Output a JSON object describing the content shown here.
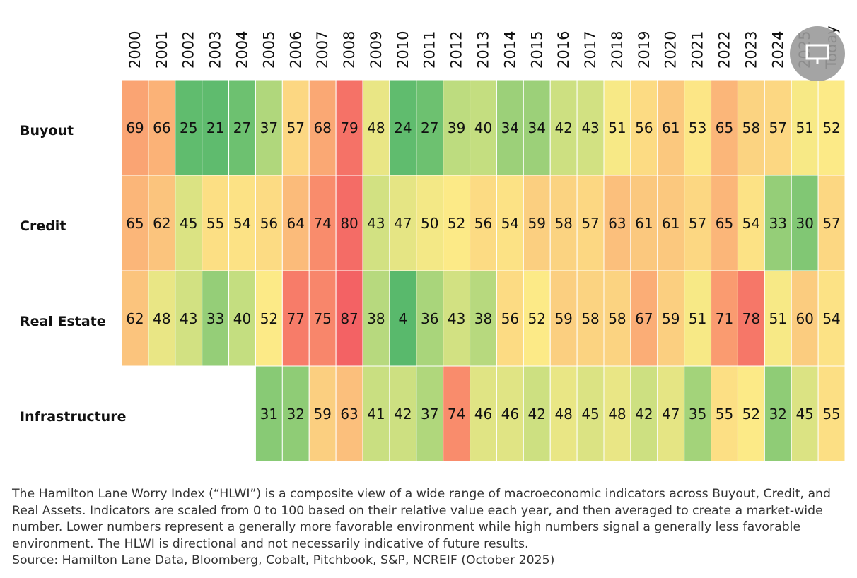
{
  "chart_data": {
    "type": "heatmap",
    "categories": [
      "2000",
      "2001",
      "2002",
      "2003",
      "2004",
      "2005",
      "2006",
      "2007",
      "2008",
      "2009",
      "2010",
      "2011",
      "2012",
      "2013",
      "2014",
      "2015",
      "2016",
      "2017",
      "2018",
      "2019",
      "2020",
      "2021",
      "2022",
      "2023",
      "2024",
      "2025",
      "Today"
    ],
    "series": [
      {
        "name": "Buyout",
        "values": [
          69,
          66,
          25,
          21,
          27,
          37,
          57,
          68,
          79,
          48,
          24,
          27,
          39,
          40,
          34,
          34,
          42,
          43,
          51,
          56,
          61,
          53,
          65,
          58,
          57,
          51,
          52
        ]
      },
      {
        "name": "Credit",
        "values": [
          65,
          62,
          45,
          55,
          54,
          56,
          64,
          74,
          80,
          43,
          47,
          50,
          52,
          56,
          54,
          59,
          58,
          57,
          63,
          61,
          61,
          57,
          65,
          54,
          33,
          30,
          57
        ]
      },
      {
        "name": "Real Estate",
        "values": [
          62,
          48,
          43,
          33,
          40,
          52,
          77,
          75,
          87,
          38,
          4,
          36,
          43,
          38,
          56,
          52,
          59,
          58,
          58,
          67,
          59,
          51,
          71,
          78,
          51,
          60,
          54
        ]
      },
      {
        "name": "Infrastructure",
        "values": [
          null,
          null,
          null,
          null,
          null,
          31,
          32,
          59,
          63,
          41,
          42,
          37,
          74,
          46,
          46,
          42,
          48,
          45,
          48,
          42,
          47,
          35,
          55,
          52,
          32,
          45,
          55
        ]
      }
    ],
    "note": "The Hamilton Lane Worry Index (“HLWI”) is a composite view of a wide range of macroeconomic indicators across Buyout, Credit, and Real Assets. Indicators are scaled from 0 to 100 based on their relative value each year, and then averaged to create a market-wide number. Lower numbers represent a generally more favorable environment while high numbers signal a generally less favorable environment. The HLWI is directional and not necessarily indicative of future results.",
    "source": "Source: Hamilton Lane Data, Bloomberg, Cobalt, Pitchbook, S&P, NCREIF (October 2025)"
  }
}
